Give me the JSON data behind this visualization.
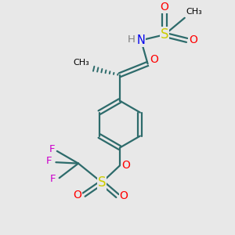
{
  "bg_color": "#e8e8e8",
  "atom_colors": {
    "C": "#000000",
    "H": "#808080",
    "N": "#0000ee",
    "O": "#ff0000",
    "S": "#cccc00",
    "F": "#cc00cc"
  },
  "bond_color": "#2d6b6b",
  "figsize": [
    3.0,
    3.0
  ],
  "dpi": 100
}
